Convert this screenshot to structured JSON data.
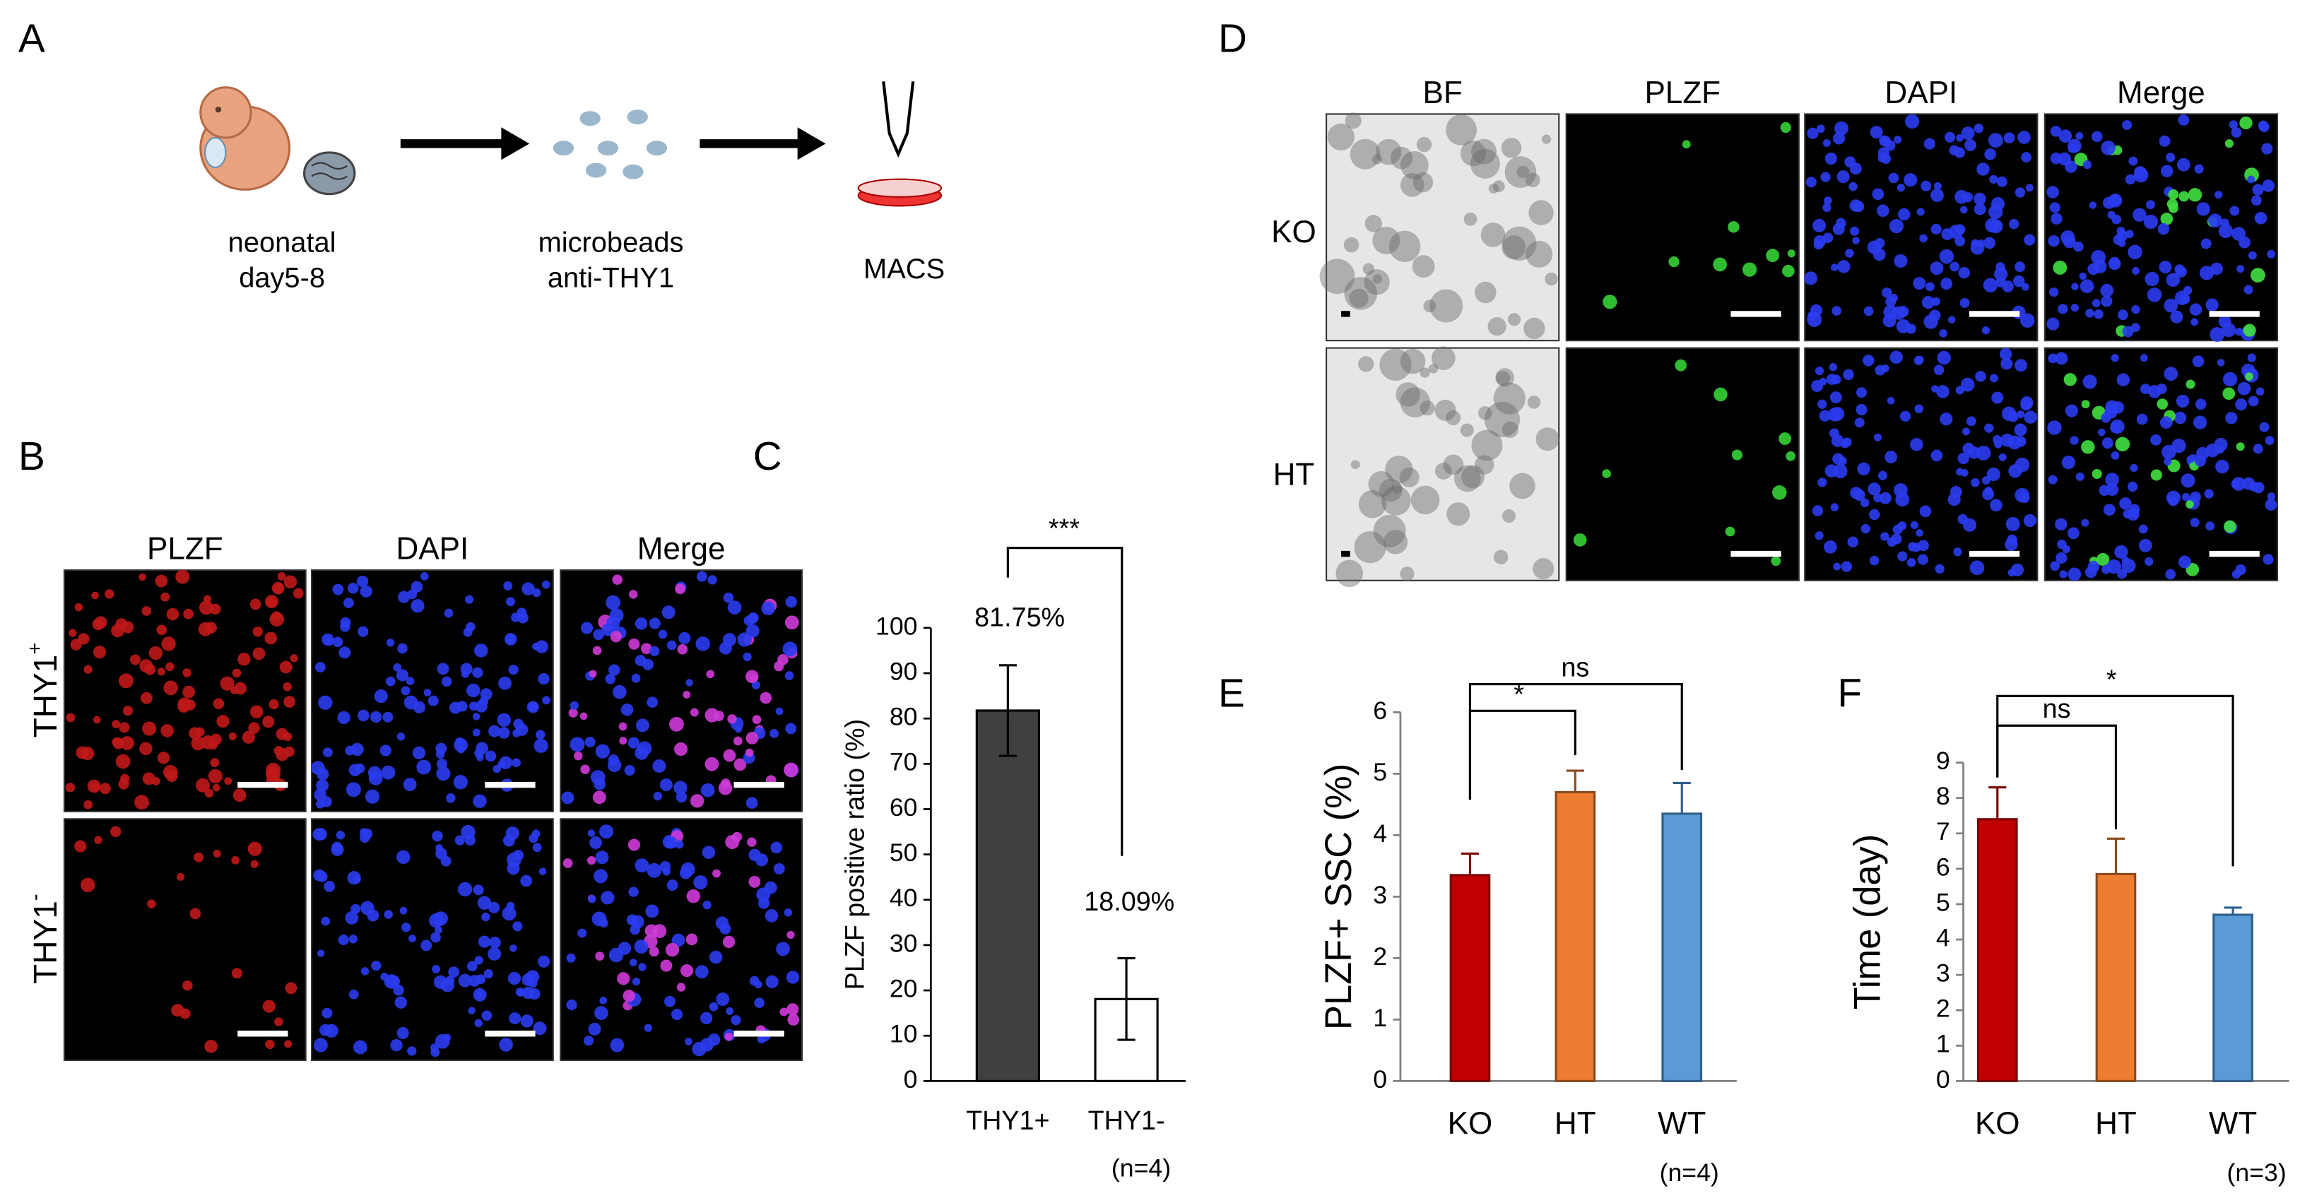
{
  "panel_labels": [
    "A",
    "B",
    "C",
    "D",
    "E",
    "F"
  ],
  "panel_a": {
    "steps": [
      [
        "neonatal",
        "day5-8"
      ],
      [
        "microbeads",
        "anti-THY1"
      ],
      [
        "MACS"
      ]
    ]
  },
  "panel_b": {
    "columns": [
      "PLZF",
      "DAPI",
      "Merge"
    ],
    "column_colors": [
      "#ff1a1a",
      "#1f6fd6",
      "#000000"
    ],
    "rows": [
      {
        "text": "THY1",
        "sup": "+"
      },
      {
        "text": "THY1",
        "sup": "-"
      }
    ]
  },
  "panel_d": {
    "columns": [
      "BF",
      "PLZF",
      "DAPI",
      "Merge"
    ],
    "column_colors": [
      "#000000",
      "#1ec01e",
      "#1f6fd6",
      "#000000"
    ],
    "rows": [
      "KO",
      "HT"
    ]
  },
  "chart_data": [
    {
      "type": "bar",
      "y_label": "PLZF positive ratio (%)",
      "categories": [
        "THY1+",
        "THY1-"
      ],
      "values": [
        81.75,
        18.09
      ],
      "value_labels": [
        "81.75%",
        "18.09%"
      ],
      "errors": [
        10,
        9
      ],
      "colors": [
        "#404040",
        "#ffffff"
      ],
      "ylim": [
        0,
        100
      ],
      "yticks": [
        0,
        10,
        20,
        30,
        40,
        50,
        60,
        70,
        80,
        90,
        100
      ],
      "significance": [
        "***"
      ],
      "note": "(n=4)"
    },
    {
      "type": "bar",
      "y_label": "PLZF+ SSC (%)",
      "categories": [
        "KO",
        "HT",
        "WT"
      ],
      "values": [
        3.35,
        4.7,
        4.35
      ],
      "errors": [
        0.35,
        0.35,
        0.5
      ],
      "colors": [
        "#c00000",
        "#ed7d31",
        "#5b9bd5"
      ],
      "ylim": [
        0,
        6
      ],
      "yticks": [
        0,
        1,
        2,
        3,
        4,
        5,
        6
      ],
      "significance": [
        "*",
        "ns"
      ],
      "note": "(n=4)"
    },
    {
      "type": "bar",
      "y_label": "Time (day)",
      "categories": [
        "KO",
        "HT",
        "WT"
      ],
      "values": [
        7.4,
        5.85,
        4.7
      ],
      "errors": [
        0.9,
        1.0,
        0.2
      ],
      "colors": [
        "#c00000",
        "#ed7d31",
        "#5b9bd5"
      ],
      "ylim": [
        0,
        9
      ],
      "yticks": [
        0,
        1,
        2,
        3,
        4,
        5,
        6,
        7,
        8,
        9
      ],
      "significance": [
        "ns",
        "*"
      ],
      "note": "(n=3)"
    }
  ]
}
